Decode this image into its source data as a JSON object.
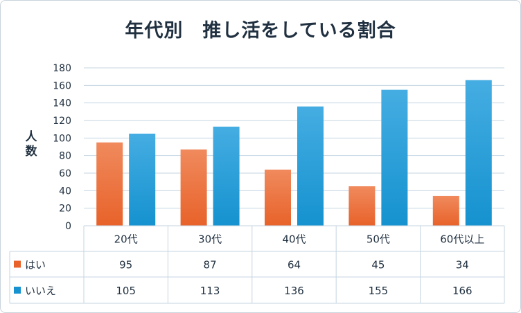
{
  "chart_data": {
    "type": "bar",
    "title": "年代別　推し活をしている割合",
    "ylabel": "人数",
    "xlabel": "",
    "ylim": [
      0,
      180
    ],
    "ytick_step": 20,
    "grid": true,
    "legend": "data-table",
    "categories": [
      "20代",
      "30代",
      "40代",
      "50代",
      "60代以上"
    ],
    "series": [
      {
        "name": "はい",
        "values": [
          95,
          87,
          64,
          45,
          34
        ],
        "color": "#e8622a",
        "color_light": "#f08a5d"
      },
      {
        "name": "いいえ",
        "values": [
          105,
          113,
          136,
          155,
          166
        ],
        "color": "#1592cf",
        "color_light": "#45ade2"
      }
    ]
  }
}
